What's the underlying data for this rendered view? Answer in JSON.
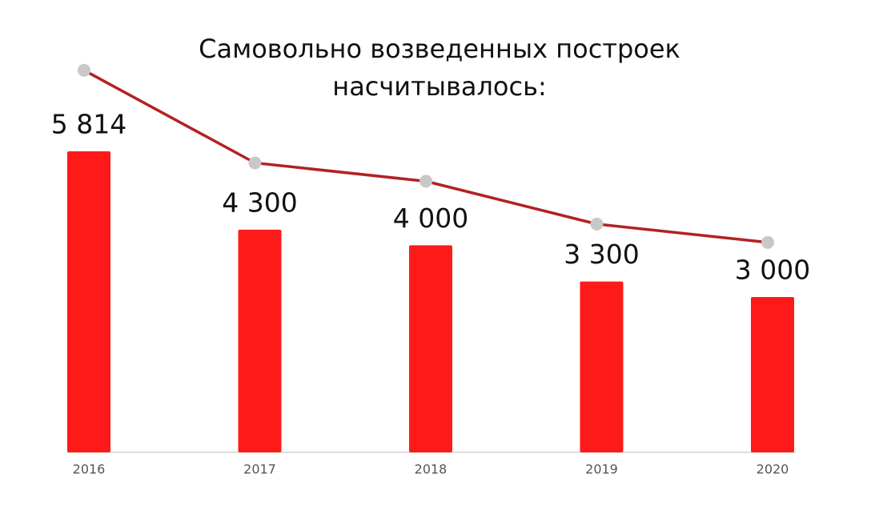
{
  "chart_data": {
    "type": "bar",
    "title": "Самовольно возведенных построек насчитывалось:",
    "categories": [
      "2016",
      "2017",
      "2018",
      "2019",
      "2020"
    ],
    "values": [
      5814,
      4300,
      4000,
      3300,
      3000
    ],
    "value_labels": [
      "5 814",
      "4 300",
      "4 000",
      "3 300",
      "3 000"
    ],
    "color": "#ff1a1a",
    "line_color": "#b22222",
    "marker_color": "#c8c8c8",
    "ylim": [
      0,
      6000
    ]
  }
}
